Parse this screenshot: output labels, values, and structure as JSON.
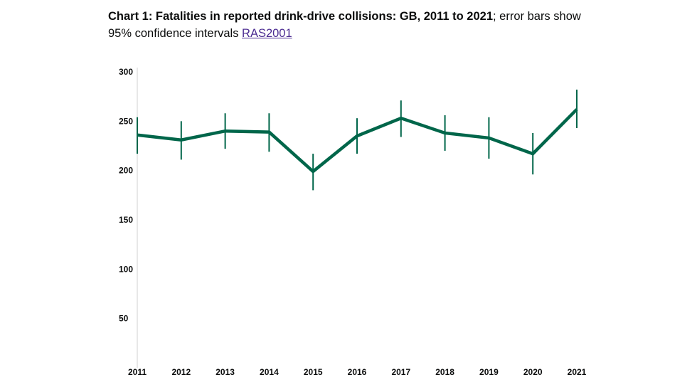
{
  "title": {
    "bold": "Chart 1: Fatalities in reported drink-drive collisions: GB, 2011 to 2021",
    "rest": "; error bars show 95% confidence intervals ",
    "link": "RAS2001"
  },
  "chart_data": {
    "type": "line",
    "title": "Chart 1: Fatalities in reported drink-drive collisions: GB, 2011 to 2021",
    "categories": [
      "2011",
      "2012",
      "2013",
      "2014",
      "2015",
      "2016",
      "2017",
      "2018",
      "2019",
      "2020",
      "2021"
    ],
    "series": [
      {
        "values": [
          236,
          231,
          240,
          239,
          199,
          235,
          253,
          238,
          233,
          217,
          262
        ],
        "lower": [
          217,
          211,
          222,
          219,
          180,
          217,
          234,
          220,
          212,
          196,
          243
        ],
        "upper": [
          254,
          250,
          258,
          258,
          217,
          253,
          271,
          256,
          254,
          238,
          282
        ]
      }
    ],
    "ylim": [
      0,
      300
    ],
    "yticks": [
      50,
      100,
      150,
      200,
      250,
      300
    ],
    "grid": false,
    "line_color": "#00664a",
    "link_color": "#4c2c92"
  }
}
